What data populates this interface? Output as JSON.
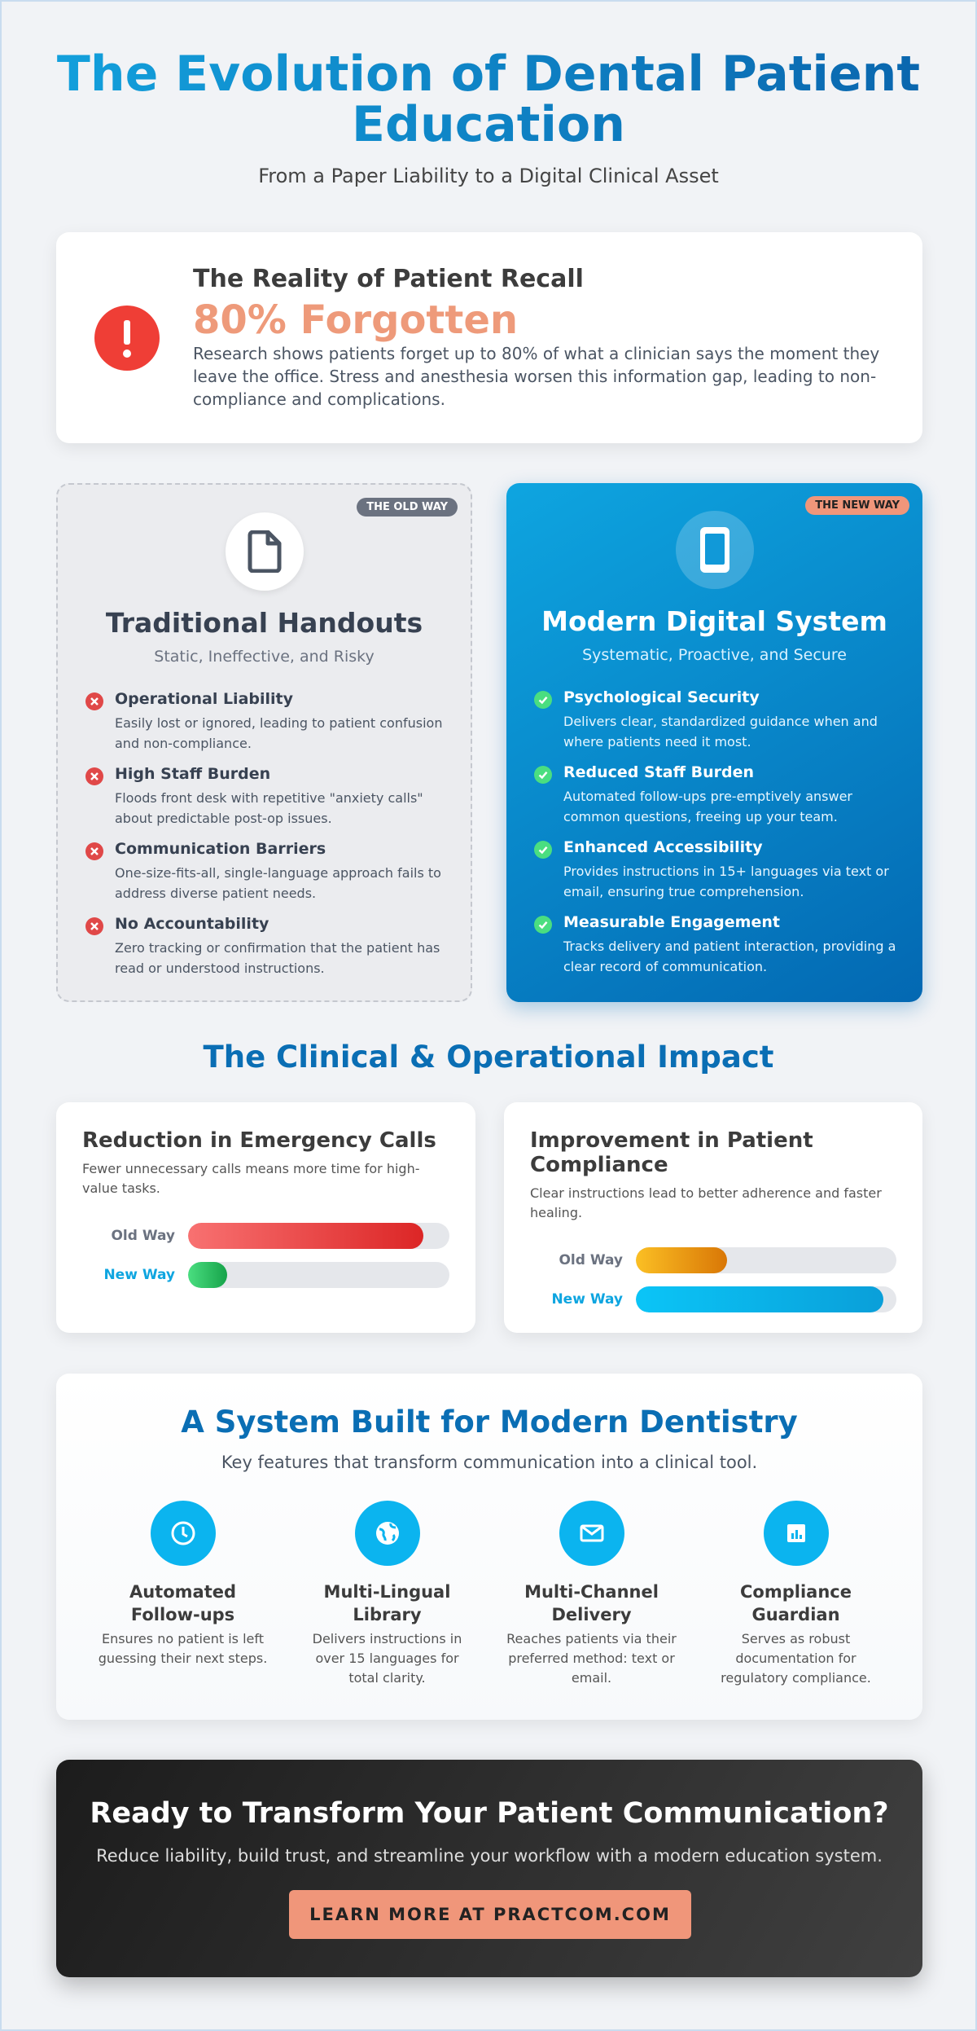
{
  "header": {
    "title": "The Evolution of Dental Patient Education",
    "subtitle": "From a Paper Liability to a Digital Clinical Asset"
  },
  "recall": {
    "heading": "The Reality of Patient Recall",
    "stat": "80% Forgotten",
    "text": "Research shows patients forget up to 80% of what a clinician says the moment they leave the office. Stress and anesthesia worsen this information gap, leading to non-compliance and complications."
  },
  "comparison": {
    "old": {
      "badge": "THE OLD WAY",
      "title": "Traditional Handouts",
      "subtitle": "Static, Ineffective, and Risky",
      "items": [
        {
          "title": "Operational Liability",
          "text": "Easily lost or ignored, leading to patient confusion and non-compliance."
        },
        {
          "title": "High Staff Burden",
          "text": "Floods front desk with repetitive \"anxiety calls\" about predictable post-op issues."
        },
        {
          "title": "Communication Barriers",
          "text": "One-size-fits-all, single-language approach fails to address diverse patient needs."
        },
        {
          "title": "No Accountability",
          "text": "Zero tracking or confirmation that the patient has read or understood instructions."
        }
      ]
    },
    "new": {
      "badge": "THE NEW WAY",
      "title": "Modern Digital System",
      "subtitle": "Systematic, Proactive, and Secure",
      "items": [
        {
          "title": "Psychological Security",
          "text": "Delivers clear, standardized guidance when and where patients need it most."
        },
        {
          "title": "Reduced Staff Burden",
          "text": "Automated follow-ups pre-emptively answer common questions, freeing up your team."
        },
        {
          "title": "Enhanced Accessibility",
          "text": "Provides instructions in 15+ languages via text or email, ensuring true comprehension."
        },
        {
          "title": "Measurable Engagement",
          "text": "Tracks delivery and patient interaction, providing a clear record of communication."
        }
      ]
    }
  },
  "impact": {
    "title": "The Clinical & Operational Impact",
    "cards": [
      {
        "title": "Reduction in Emergency Calls",
        "text": "Fewer unnecessary calls means more time for high-value tasks.",
        "bars": [
          {
            "label": "Old Way",
            "value": 90
          },
          {
            "label": "New Way",
            "value": 15
          }
        ]
      },
      {
        "title": "Improvement in Patient Compliance",
        "text": "Clear instructions lead to better adherence and faster healing.",
        "bars": [
          {
            "label": "Old Way",
            "value": 35
          },
          {
            "label": "New Way",
            "value": 95
          }
        ]
      }
    ]
  },
  "features": {
    "title": "A System Built for Modern Dentistry",
    "subtitle": "Key features that transform communication into a clinical tool.",
    "items": [
      {
        "title": "Automated Follow-ups",
        "text": "Ensures no patient is left guessing their next steps."
      },
      {
        "title": "Multi-Lingual Library",
        "text": "Delivers instructions in over 15 languages for total clarity."
      },
      {
        "title": "Multi-Channel Delivery",
        "text": "Reaches patients via their preferred method: text or email."
      },
      {
        "title": "Compliance Guardian",
        "text": "Serves as robust documentation for regulatory compliance."
      }
    ]
  },
  "cta": {
    "title": "Ready to Transform Your Patient Communication?",
    "text": "Reduce liability, build trust, and streamline your workflow with a modern education system.",
    "button": "LEARN MORE AT PRACTCOM.COM"
  }
}
